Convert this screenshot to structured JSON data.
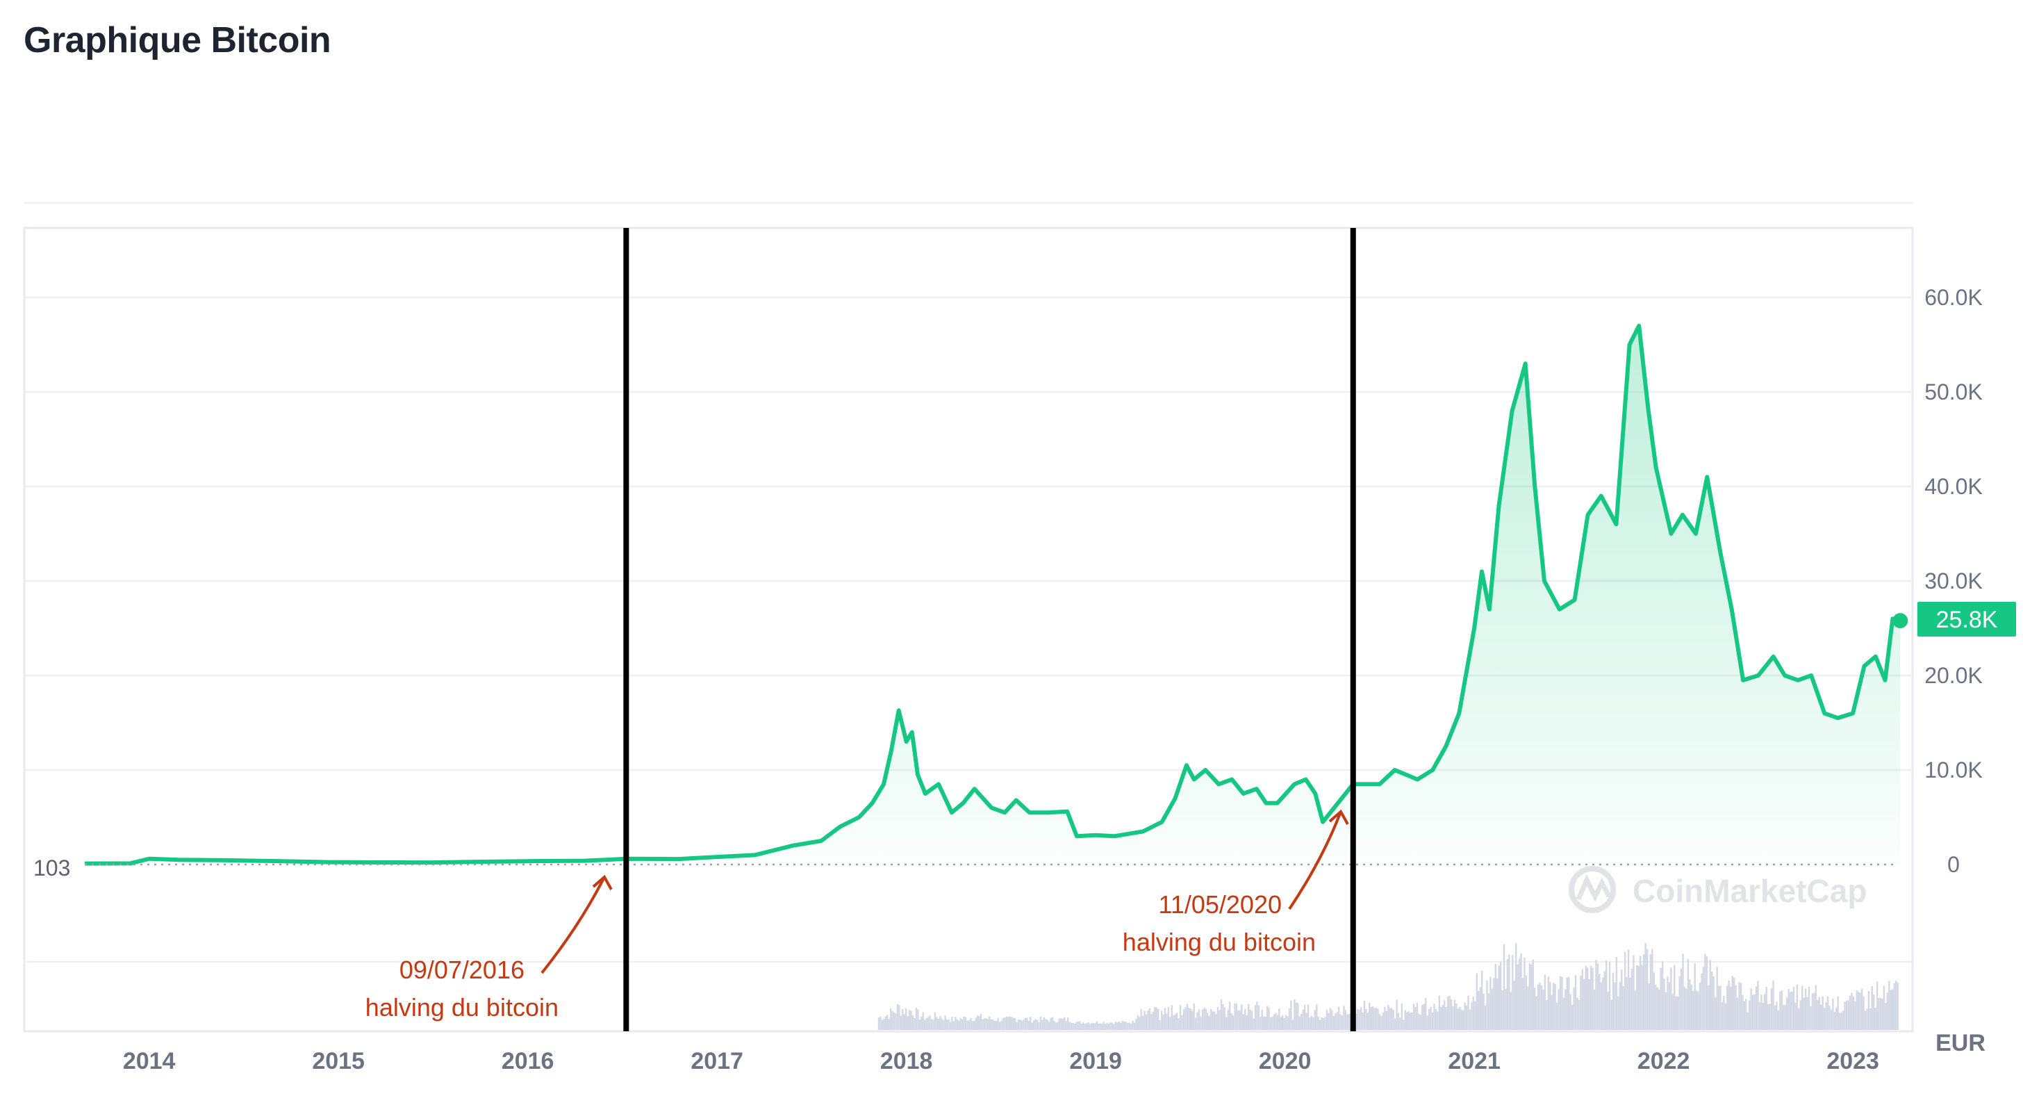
{
  "title": "Graphique Bitcoin",
  "chart_data": {
    "type": "area",
    "currency": "EUR",
    "current_value_label": "25.8K",
    "start_value_label": "103",
    "x_ticks": [
      "2014",
      "2015",
      "2016",
      "2017",
      "2018",
      "2019",
      "2020",
      "2021",
      "2022",
      "2023"
    ],
    "y_ticks": [
      "0",
      "10.0K",
      "20.0K",
      "30.0K",
      "40.0K",
      "50.0K",
      "60.0K"
    ],
    "ylim": [
      0,
      60000
    ],
    "xlim": [
      2013.66,
      2023.25
    ],
    "grid": true,
    "series": [
      {
        "color": "#16c784",
        "points": [
          [
            2013.66,
            103
          ],
          [
            2013.9,
            120
          ],
          [
            2014.0,
            600
          ],
          [
            2014.15,
            500
          ],
          [
            2014.4,
            450
          ],
          [
            2014.7,
            350
          ],
          [
            2014.95,
            250
          ],
          [
            2015.2,
            220
          ],
          [
            2015.5,
            210
          ],
          [
            2015.8,
            300
          ],
          [
            2016.0,
            350
          ],
          [
            2016.3,
            400
          ],
          [
            2016.52,
            600
          ],
          [
            2016.8,
            580
          ],
          [
            2017.0,
            800
          ],
          [
            2017.2,
            1000
          ],
          [
            2017.4,
            2000
          ],
          [
            2017.55,
            2500
          ],
          [
            2017.65,
            4000
          ],
          [
            2017.75,
            5000
          ],
          [
            2017.82,
            6500
          ],
          [
            2017.88,
            8500
          ],
          [
            2017.92,
            12000
          ],
          [
            2017.96,
            16300
          ],
          [
            2018.0,
            13000
          ],
          [
            2018.03,
            14000
          ],
          [
            2018.06,
            9500
          ],
          [
            2018.1,
            7500
          ],
          [
            2018.17,
            8500
          ],
          [
            2018.24,
            5500
          ],
          [
            2018.3,
            6500
          ],
          [
            2018.36,
            8000
          ],
          [
            2018.45,
            6000
          ],
          [
            2018.52,
            5500
          ],
          [
            2018.58,
            6800
          ],
          [
            2018.65,
            5500
          ],
          [
            2018.75,
            5500
          ],
          [
            2018.85,
            5600
          ],
          [
            2018.9,
            3000
          ],
          [
            2019.0,
            3100
          ],
          [
            2019.1,
            3000
          ],
          [
            2019.25,
            3500
          ],
          [
            2019.35,
            4500
          ],
          [
            2019.42,
            7000
          ],
          [
            2019.48,
            10500
          ],
          [
            2019.52,
            9000
          ],
          [
            2019.58,
            10000
          ],
          [
            2019.65,
            8500
          ],
          [
            2019.72,
            9000
          ],
          [
            2019.78,
            7500
          ],
          [
            2019.85,
            8000
          ],
          [
            2019.9,
            6500
          ],
          [
            2019.96,
            6500
          ],
          [
            2020.05,
            8500
          ],
          [
            2020.11,
            9000
          ],
          [
            2020.16,
            7500
          ],
          [
            2020.2,
            4500
          ],
          [
            2020.28,
            6500
          ],
          [
            2020.36,
            8500
          ],
          [
            2020.5,
            8500
          ],
          [
            2020.58,
            10000
          ],
          [
            2020.7,
            9000
          ],
          [
            2020.78,
            10000
          ],
          [
            2020.85,
            12500
          ],
          [
            2020.92,
            16000
          ],
          [
            2021.0,
            25000
          ],
          [
            2021.04,
            31000
          ],
          [
            2021.08,
            27000
          ],
          [
            2021.13,
            38000
          ],
          [
            2021.2,
            48000
          ],
          [
            2021.27,
            53000
          ],
          [
            2021.32,
            40000
          ],
          [
            2021.37,
            30000
          ],
          [
            2021.45,
            27000
          ],
          [
            2021.53,
            28000
          ],
          [
            2021.6,
            37000
          ],
          [
            2021.67,
            39000
          ],
          [
            2021.75,
            36000
          ],
          [
            2021.82,
            55000
          ],
          [
            2021.87,
            57000
          ],
          [
            2021.92,
            48000
          ],
          [
            2021.96,
            42000
          ],
          [
            2022.04,
            35000
          ],
          [
            2022.1,
            37000
          ],
          [
            2022.17,
            35000
          ],
          [
            2022.23,
            41000
          ],
          [
            2022.3,
            33000
          ],
          [
            2022.36,
            27000
          ],
          [
            2022.42,
            19500
          ],
          [
            2022.5,
            20000
          ],
          [
            2022.58,
            22000
          ],
          [
            2022.64,
            20000
          ],
          [
            2022.71,
            19500
          ],
          [
            2022.78,
            20000
          ],
          [
            2022.85,
            16000
          ],
          [
            2022.92,
            15500
          ],
          [
            2023.0,
            16000
          ],
          [
            2023.06,
            21000
          ],
          [
            2023.12,
            22000
          ],
          [
            2023.17,
            19500
          ],
          [
            2023.21,
            26000
          ],
          [
            2023.25,
            25800
          ]
        ]
      }
    ],
    "volume_bars": "present",
    "halving_markers": [
      {
        "x": 2016.52,
        "date_label": "09/07/2016",
        "caption": "halving du bitcoin"
      },
      {
        "x": 2020.36,
        "date_label": "11/05/2020",
        "caption": "halving du bitcoin"
      }
    ],
    "watermark": "CoinMarketCap",
    "colors": {
      "line": "#16c784",
      "pre_line": "#c23a12",
      "annotation": "#c23a12",
      "marker": "#000000",
      "volume": "#d4d8e4"
    }
  }
}
